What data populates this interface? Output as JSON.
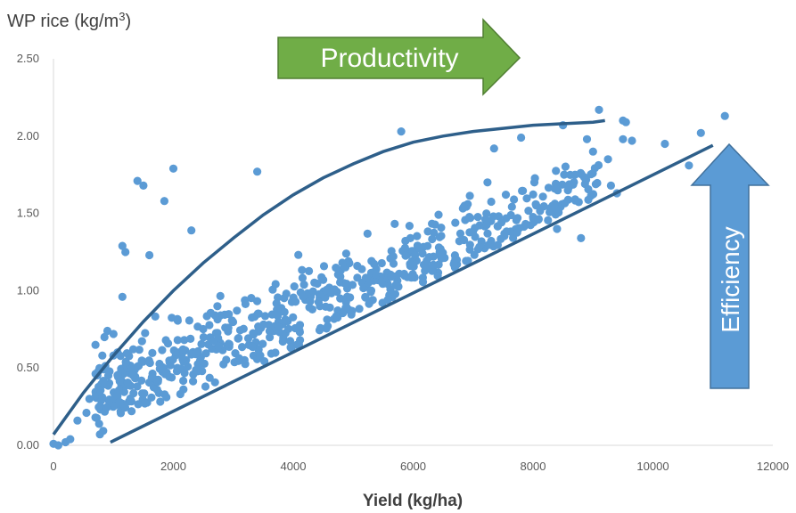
{
  "chart_data": {
    "type": "scatter",
    "title": "",
    "ylabel_main": "WP rice (kg/m",
    "ylabel_sup": "3",
    "ylabel_close": ")",
    "xlabel": "Yield (kg/ha)",
    "xlim": [
      0,
      12000
    ],
    "ylim": [
      0,
      2.5
    ],
    "x_ticks": [
      "0",
      "2000",
      "4000",
      "6000",
      "8000",
      "10000",
      "12000"
    ],
    "y_ticks": [
      "0.00",
      "0.50",
      "1.00",
      "1.50",
      "2.00",
      "2.50"
    ],
    "grid": false,
    "point_color": "#5b9bd5",
    "line_color": "#2e5f8a",
    "upper_boundary": {
      "x": [
        0,
        500,
        1000,
        1500,
        2000,
        2500,
        3000,
        3500,
        4000,
        4500,
        5000,
        5500,
        6000,
        6500,
        7000,
        7500,
        8000,
        8500,
        9000,
        9200
      ],
      "y": [
        0.07,
        0.34,
        0.58,
        0.8,
        1.0,
        1.18,
        1.34,
        1.49,
        1.62,
        1.73,
        1.82,
        1.9,
        1.96,
        2.0,
        2.03,
        2.05,
        2.07,
        2.08,
        2.09,
        2.1
      ]
    },
    "lower_boundary": {
      "x": [
        950,
        11000
      ],
      "y": [
        0.02,
        1.94
      ]
    },
    "outliers": [
      [
        1400,
        1.71
      ],
      [
        1500,
        1.68
      ],
      [
        2000,
        1.79
      ],
      [
        1850,
        1.58
      ],
      [
        3400,
        1.77
      ],
      [
        2300,
        1.39
      ],
      [
        1150,
        1.29
      ],
      [
        1200,
        1.25
      ],
      [
        1600,
        1.23
      ],
      [
        1150,
        0.96
      ],
      [
        5800,
        2.03
      ],
      [
        9100,
        2.17
      ],
      [
        9500,
        2.1
      ],
      [
        9550,
        2.09
      ],
      [
        9500,
        1.98
      ],
      [
        9650,
        1.97
      ],
      [
        10200,
        1.95
      ],
      [
        10800,
        2.02
      ],
      [
        11200,
        2.13
      ],
      [
        10600,
        1.81
      ],
      [
        9250,
        1.85
      ],
      [
        8900,
        1.98
      ],
      [
        9000,
        1.9
      ],
      [
        8500,
        2.07
      ],
      [
        8700,
        1.75
      ],
      [
        7800,
        1.99
      ],
      [
        7350,
        1.92
      ],
      [
        0,
        0.01
      ],
      [
        80,
        0.0
      ],
      [
        200,
        0.02
      ],
      [
        280,
        0.04
      ],
      [
        400,
        0.16
      ],
      [
        550,
        0.21
      ],
      [
        700,
        0.18
      ],
      [
        600,
        0.3
      ],
      [
        750,
        0.48
      ],
      [
        700,
        0.65
      ],
      [
        850,
        0.7
      ],
      [
        900,
        0.74
      ],
      [
        1000,
        0.72
      ],
      [
        1100,
        0.28
      ],
      [
        8800,
        1.34
      ],
      [
        8400,
        1.4
      ],
      [
        9300,
        1.68
      ],
      [
        9400,
        1.63
      ]
    ],
    "arrows": {
      "productivity": "Productivity",
      "efficiency": "Efficiency",
      "fill": "#70ad47",
      "efficiency_fill": "#5b9bd5",
      "border": "#507e32",
      "efficiency_border": "#41719c"
    }
  }
}
